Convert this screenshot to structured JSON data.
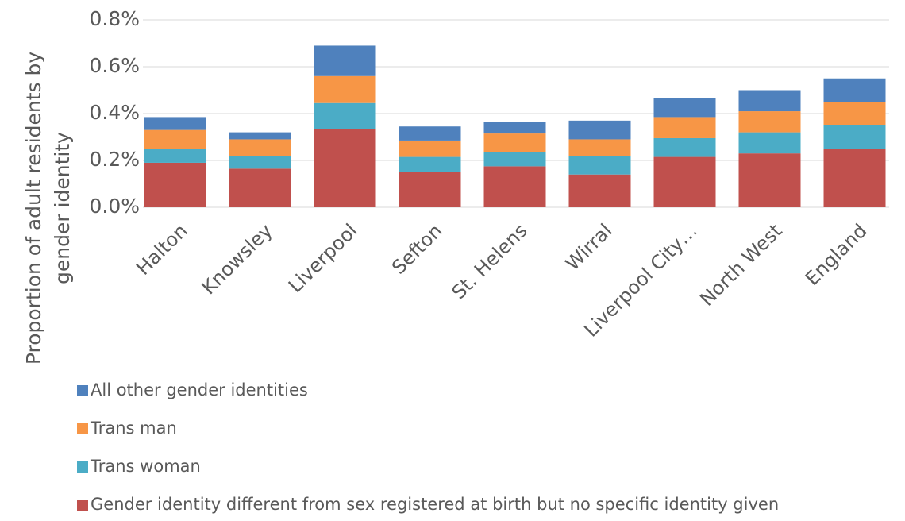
{
  "chart_data": {
    "type": "stacked_bar",
    "y_label": [
      "Proportion of adult residents by",
      "gender identity"
    ],
    "categories": [
      "Halton",
      "Knowsley",
      "Liverpool",
      "Sefton",
      "St. Helens",
      "Wirral",
      "Liverpool City…",
      "North West",
      "England"
    ],
    "series": [
      {
        "name": "Gender identity different from sex registered at birth but no specific identity given",
        "color": "#c0504d",
        "values": [
          0.19,
          0.165,
          0.335,
          0.15,
          0.175,
          0.14,
          0.215,
          0.23,
          0.25
        ]
      },
      {
        "name": "Trans woman",
        "color": "#4bacc6",
        "values": [
          0.06,
          0.055,
          0.11,
          0.065,
          0.06,
          0.08,
          0.08,
          0.09,
          0.1
        ]
      },
      {
        "name": "Trans man",
        "color": "#f79646",
        "values": [
          0.08,
          0.07,
          0.115,
          0.07,
          0.08,
          0.07,
          0.09,
          0.09,
          0.1
        ]
      },
      {
        "name": "All other gender identities",
        "color": "#4f81bd",
        "values": [
          0.055,
          0.03,
          0.13,
          0.06,
          0.05,
          0.08,
          0.08,
          0.09,
          0.1
        ]
      }
    ],
    "ylim": [
      0,
      0.8
    ],
    "yticks": [
      {
        "value": 0,
        "label": "0.0%"
      },
      {
        "value": 0.2,
        "label": "0.2%"
      },
      {
        "value": 0.4,
        "label": "0.4%"
      },
      {
        "value": 0.6,
        "label": "0.6%"
      },
      {
        "value": 0.8,
        "label": "0.8%"
      }
    ],
    "grid": true,
    "legend": "bottom"
  }
}
